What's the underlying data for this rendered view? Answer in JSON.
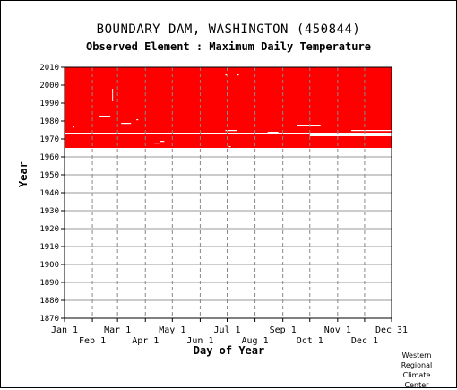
{
  "chart_data": {
    "type": "heatmap",
    "title": "BOUNDARY DAM, WASHINGTON   (450844)",
    "subtitle": "Observed Element : Maximum Daily Temperature",
    "xlabel": "Day of Year",
    "ylabel": "Year",
    "ylim": [
      1870,
      2010
    ],
    "y_ticks": [
      1870,
      1880,
      1890,
      1900,
      1910,
      1920,
      1930,
      1940,
      1950,
      1960,
      1970,
      1980,
      1990,
      2000,
      2010
    ],
    "x_ticks_upper": [
      {
        "label": "Jan 1",
        "day": 1
      },
      {
        "label": "Mar 1",
        "day": 60
      },
      {
        "label": "May 1",
        "day": 121
      },
      {
        "label": "Jul 1",
        "day": 182
      },
      {
        "label": "Sep 1",
        "day": 244
      },
      {
        "label": "Nov 1",
        "day": 305
      },
      {
        "label": "Dec 31",
        "day": 365
      }
    ],
    "x_ticks_lower": [
      {
        "label": "Feb 1",
        "day": 32
      },
      {
        "label": "Apr 1",
        "day": 91
      },
      {
        "label": "Jun 1",
        "day": 152
      },
      {
        "label": "Aug 1",
        "day": 213
      },
      {
        "label": "Oct 1",
        "day": 274
      },
      {
        "label": "Dec 1",
        "day": 335
      }
    ],
    "data_color": "#ff0000",
    "grid": true,
    "record_period": {
      "start_year": 1965,
      "end_year": 2010
    },
    "missing_blocks": [
      {
        "year": 1973.5,
        "year_end": 1972.5,
        "day_start": 1,
        "day_end": 365
      },
      {
        "year": 1972.5,
        "year_end": 1971.5,
        "day_start": 274,
        "day_end": 365
      },
      {
        "year": 1983,
        "year_end": 1982.4,
        "day_start": 40,
        "day_end": 52
      },
      {
        "year": 1979,
        "year_end": 1978.4,
        "day_start": 64,
        "day_end": 75
      },
      {
        "year": 1978,
        "year_end": 1977.4,
        "day_start": 260,
        "day_end": 286
      },
      {
        "year": 1975,
        "year_end": 1974.4,
        "day_start": 180,
        "day_end": 193
      },
      {
        "year": 1975,
        "year_end": 1974.4,
        "day_start": 320,
        "day_end": 365
      },
      {
        "year": 1969,
        "year_end": 1968.4,
        "day_start": 107,
        "day_end": 112
      },
      {
        "year": 1968,
        "year_end": 1967.4,
        "day_start": 101,
        "day_end": 107
      },
      {
        "year": 2006,
        "year_end": 2005.4,
        "day_start": 180,
        "day_end": 183
      },
      {
        "year": 2006,
        "year_end": 2005.4,
        "day_start": 193,
        "day_end": 195
      },
      {
        "year": 1998,
        "year_end": 1991,
        "day_start": 54,
        "day_end": 55
      },
      {
        "year": 1977,
        "year_end": 1976.4,
        "day_start": 10,
        "day_end": 12
      },
      {
        "year": 1981,
        "year_end": 1980.4,
        "day_start": 81,
        "day_end": 83
      },
      {
        "year": 1974,
        "year_end": 1973.4,
        "day_start": 227,
        "day_end": 239
      },
      {
        "year": 1966,
        "year_end": 1965.4,
        "day_start": 184,
        "day_end": 186
      }
    ]
  },
  "footer": {
    "credit_lines": [
      "Western",
      "Regional",
      "Climate",
      "Center"
    ]
  }
}
